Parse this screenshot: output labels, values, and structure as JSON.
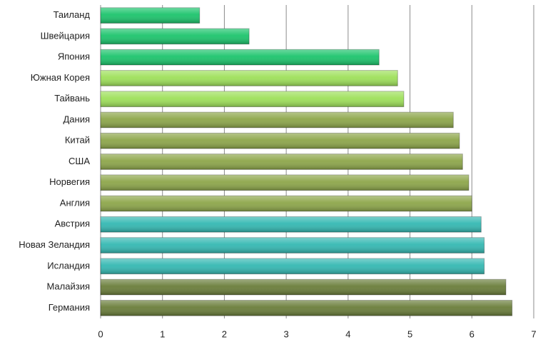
{
  "chart_data": {
    "type": "hbar",
    "categories": [
      "Таиланд",
      "Швейцария",
      "Япония",
      "Южная Корея",
      "Тайвань",
      "Дания",
      "Китай",
      "США",
      "Норвегия",
      "Англия",
      "Австрия",
      "Новая Зеландия",
      "Исландия",
      "Малайзия",
      "Германия"
    ],
    "values": [
      1.6,
      2.4,
      4.5,
      4.8,
      4.9,
      5.7,
      5.8,
      5.85,
      5.95,
      6.0,
      6.15,
      6.2,
      6.2,
      6.55,
      6.65
    ],
    "colors": [
      "#1cc46c",
      "#1cc46c",
      "#1cc46c",
      "#9ee05a",
      "#9ee05a",
      "#8da64a",
      "#8da64a",
      "#8da64a",
      "#8da64a",
      "#8da64a",
      "#34b8b2",
      "#34b8b2",
      "#34b8b2",
      "#6a7d3a",
      "#6a7d3a"
    ],
    "xlim": [
      0,
      7
    ],
    "xticks": [
      0,
      1,
      2,
      3,
      4,
      5,
      6,
      7
    ],
    "grid": true
  }
}
